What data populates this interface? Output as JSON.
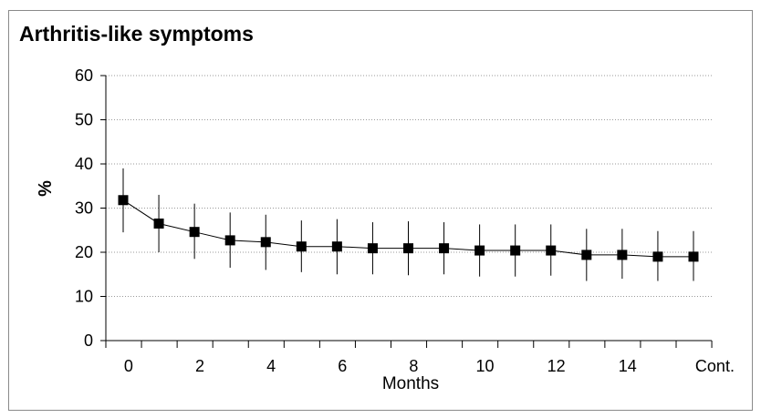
{
  "chart_data": {
    "type": "line",
    "title": "Arthritis-like symptoms",
    "xlabel": "Months",
    "ylabel": "%",
    "ylim": [
      0,
      60
    ],
    "yticks": [
      0,
      10,
      20,
      30,
      40,
      50,
      60
    ],
    "x_tick_labels": [
      "0",
      "2",
      "4",
      "6",
      "8",
      "10",
      "12",
      "14",
      "Cont."
    ],
    "grid": "horizontal-dotted",
    "marker": "square",
    "categories": [
      "0",
      "1",
      "2",
      "3",
      "4",
      "5",
      "6",
      "7",
      "8",
      "9",
      "10",
      "11",
      "12",
      "13",
      "14",
      "15",
      "Cont."
    ],
    "values": [
      31.8,
      26.5,
      24.6,
      22.7,
      22.3,
      21.3,
      21.3,
      20.9,
      20.9,
      20.9,
      20.4,
      20.4,
      20.4,
      19.4,
      19.4,
      19.0,
      19.0
    ],
    "error_low": [
      24.5,
      20.0,
      18.5,
      16.5,
      16.0,
      15.5,
      15.0,
      15.0,
      14.8,
      15.0,
      14.5,
      14.5,
      14.7,
      13.5,
      14.0,
      13.5,
      13.5
    ],
    "error_high": [
      39.0,
      33.0,
      31.0,
      29.0,
      28.5,
      27.2,
      27.5,
      26.8,
      27.0,
      26.8,
      26.3,
      26.3,
      26.3,
      25.3,
      25.3,
      24.8,
      24.8
    ],
    "colors": {
      "line": "#000000",
      "marker": "#000000",
      "grid": "#9a9a9a",
      "axis": "#000000"
    }
  }
}
